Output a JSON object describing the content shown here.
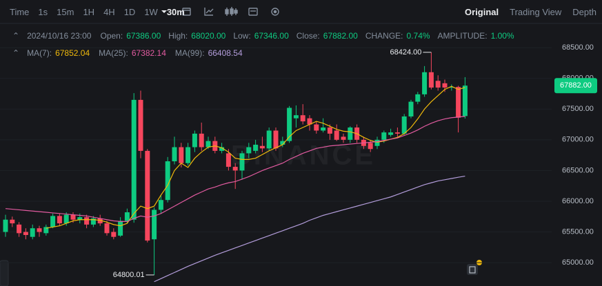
{
  "toolbar": {
    "intervals": [
      "Time",
      "1s",
      "15m",
      "1H",
      "4H",
      "1D",
      "1W",
      "30m"
    ],
    "selected": "30m",
    "tabs": [
      "Original",
      "Trading View",
      "Depth"
    ],
    "selected_tab": "Original"
  },
  "info": {
    "date": "2024/10/16 23:00",
    "fields": [
      {
        "label": "Open:",
        "value": "67386.00"
      },
      {
        "label": "High:",
        "value": "68020.00"
      },
      {
        "label": "Low:",
        "value": "67346.00"
      },
      {
        "label": "Close:",
        "value": "67882.00"
      },
      {
        "label": "CHANGE:",
        "value": "0.74%"
      },
      {
        "label": "AMPLITUDE:",
        "value": "1.00%"
      }
    ]
  },
  "chart_data": {
    "type": "candlestick",
    "watermark": "BINANCE",
    "open": [
      65500,
      65700,
      65620,
      65500,
      65420,
      65560,
      65480,
      65580,
      65760,
      65640,
      65780,
      65700,
      65740,
      65620,
      65720,
      65640,
      65500,
      65440,
      65680,
      65700,
      67650,
      66820,
      65380,
      65860,
      66020,
      66650,
      66880,
      66620,
      66880,
      67100,
      66880,
      66980,
      66820,
      66780,
      66560,
      66500,
      66780,
      66820,
      66900,
      66860,
      67150,
      66920,
      66980,
      67350,
      67400,
      67350,
      67250,
      67150,
      67200,
      67150,
      67050,
      67000,
      67200,
      67000,
      66950,
      66900,
      67000,
      67080,
      67120,
      67100,
      67380,
      67620,
      67740,
      68100,
      67960,
      67920,
      67850,
      67860,
      67386
    ],
    "high": [
      65780,
      65750,
      65660,
      65560,
      65620,
      65600,
      65620,
      65800,
      65800,
      65820,
      65820,
      65800,
      65780,
      65760,
      65780,
      65680,
      65560,
      65740,
      65880,
      67760,
      67800,
      66850,
      65900,
      66100,
      66720,
      67050,
      66950,
      66950,
      67150,
      67280,
      67050,
      67050,
      66950,
      66850,
      66620,
      66820,
      66950,
      67000,
      67050,
      67200,
      67200,
      67050,
      67550,
      67560,
      67580,
      67400,
      67300,
      67350,
      67250,
      67250,
      67100,
      67220,
      67250,
      67050,
      67000,
      67050,
      67150,
      67180,
      67200,
      67420,
      67650,
      67780,
      68200,
      68424,
      68050,
      67980,
      67900,
      67880,
      68020
    ],
    "low": [
      65420,
      65580,
      65420,
      65380,
      65380,
      65420,
      65440,
      65560,
      65600,
      65600,
      65650,
      65640,
      65560,
      65580,
      65600,
      65440,
      65380,
      65420,
      65640,
      65650,
      66700,
      65330,
      64800.01,
      65800,
      65980,
      66600,
      66550,
      66580,
      66800,
      66820,
      66850,
      66780,
      66780,
      66500,
      66200,
      66350,
      66700,
      66780,
      66800,
      66820,
      66820,
      66880,
      66950,
      67200,
      67250,
      67150,
      67100,
      67120,
      67000,
      66980,
      66950,
      66950,
      66950,
      66850,
      66800,
      66850,
      66950,
      67050,
      67050,
      67080,
      67350,
      67580,
      67700,
      67820,
      67800,
      67780,
      67800,
      67120,
      67346
    ],
    "close": [
      65700,
      65640,
      65480,
      65450,
      65560,
      65500,
      65580,
      65760,
      65640,
      65780,
      65700,
      65740,
      65620,
      65720,
      65640,
      65480,
      65420,
      65680,
      65820,
      67650,
      66820,
      65360,
      65860,
      66020,
      66650,
      66880,
      66620,
      66880,
      67100,
      66880,
      66980,
      66820,
      66880,
      66560,
      66500,
      66780,
      66880,
      66920,
      66860,
      67150,
      66860,
      66980,
      67520,
      67400,
      67300,
      67250,
      67150,
      67200,
      67100,
      67000,
      67000,
      67200,
      67000,
      66900,
      66850,
      67000,
      67120,
      67120,
      67100,
      67380,
      67620,
      67740,
      68100,
      67850,
      67850,
      67850,
      67860,
      67360,
      67882
    ],
    "up_color": "#0ecb81",
    "down_color": "#f6465d",
    "series": [
      {
        "name": "MA(7):",
        "color": "#f0b90b",
        "values": [
          null,
          null,
          null,
          null,
          null,
          null,
          65560,
          65580,
          65600,
          65640,
          65680,
          65700,
          65700,
          65700,
          65690,
          65660,
          65620,
          65600,
          65640,
          65800,
          65920,
          65880,
          65920,
          66100,
          66260,
          66500,
          66620,
          66550,
          66700,
          66800,
          66880,
          66900,
          66870,
          66800,
          66700,
          66680,
          66680,
          66700,
          66760,
          66820,
          66870,
          66920,
          67050,
          67150,
          67200,
          67250,
          67300,
          67270,
          67220,
          67170,
          67140,
          67130,
          67100,
          67040,
          66990,
          66960,
          66980,
          67010,
          67040,
          67100,
          67200,
          67340,
          67500,
          67620,
          67720,
          67820,
          67870,
          67820,
          67852.04
        ]
      },
      {
        "name": "MA(25):",
        "color": "#e25ba0",
        "values": [
          65880,
          65870,
          65860,
          65850,
          65840,
          65830,
          65820,
          65810,
          65800,
          65790,
          65780,
          65770,
          65760,
          65740,
          65720,
          65700,
          65680,
          65670,
          65670,
          65720,
          65760,
          65740,
          65760,
          65800,
          65860,
          65920,
          65980,
          66040,
          66100,
          66150,
          66200,
          66230,
          66270,
          66300,
          66320,
          66360,
          66400,
          66450,
          66500,
          66540,
          66580,
          66620,
          66680,
          66730,
          66780,
          66820,
          66860,
          66880,
          66900,
          66910,
          66920,
          66930,
          66940,
          66950,
          66960,
          66970,
          66990,
          67010,
          67030,
          67070,
          67110,
          67160,
          67220,
          67270,
          67310,
          67340,
          67360,
          67370,
          67382.14
        ]
      },
      {
        "name": "MA(99):",
        "color": "#b39ddb",
        "values": [
          null,
          null,
          null,
          null,
          null,
          null,
          null,
          null,
          null,
          null,
          null,
          null,
          null,
          null,
          null,
          null,
          null,
          null,
          null,
          null,
          null,
          null,
          64690,
          64740,
          64790,
          64840,
          64890,
          64940,
          64985,
          65030,
          65075,
          65120,
          65160,
          65200,
          65240,
          65280,
          65320,
          65360,
          65400,
          65440,
          65480,
          65520,
          65560,
          65600,
          65640,
          65690,
          65730,
          65770,
          65800,
          65830,
          65860,
          65890,
          65920,
          65950,
          65980,
          66010,
          66040,
          66070,
          66110,
          66150,
          66190,
          66230,
          66270,
          66300,
          66330,
          66350,
          66370,
          66390,
          66408.54
        ]
      }
    ],
    "max_label": "68424.00",
    "min_label": "64800.01",
    "last_price_label": "67882.00",
    "ylim": [
      64620,
      68580
    ],
    "yticks": [
      {
        "value": 65000,
        "label": "65000.00"
      },
      {
        "value": 65500,
        "label": "65500.00"
      },
      {
        "value": 66000,
        "label": "66000.00"
      },
      {
        "value": 66500,
        "label": "66500.00"
      },
      {
        "value": 67000,
        "label": "67000.00"
      },
      {
        "value": 67500,
        "label": "67500.00"
      },
      {
        "value": 68000,
        "label": "68000.00"
      },
      {
        "value": 68500,
        "label": "68500.00"
      }
    ],
    "grid": true
  }
}
